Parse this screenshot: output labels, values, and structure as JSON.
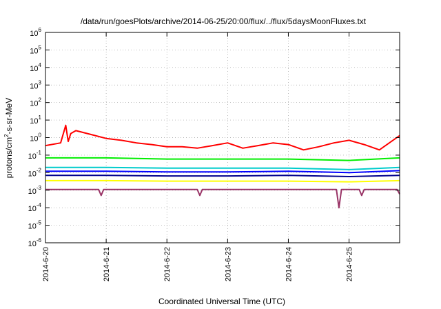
{
  "chart_data": {
    "type": "line",
    "title": "/data/run/goesPlots/archive/2014-06-25/20:00/flux/../flux/5daysMoonFluxes.txt",
    "xlabel": "Coordinated Universal Time (UTC)",
    "ylabel_prefix": "protons/cm",
    "ylabel_sup": "2",
    "ylabel_suffix": "-s-sr-MeV",
    "x_scale": "date",
    "y_scale": "log",
    "grid": true,
    "legend": "none",
    "xlim": [
      "2014-06-20 00:00",
      "2014-06-25 20:00"
    ],
    "ylim": [
      1e-06,
      1000000.0
    ],
    "x_ticks": [
      "2014-6-20",
      "2014-6-21",
      "2014-6-22",
      "2014-6-23",
      "2014-6-24",
      "2014-6-25"
    ],
    "y_ticks": [
      {
        "base": "10",
        "exp": "-6"
      },
      {
        "base": "10",
        "exp": "-5"
      },
      {
        "base": "10",
        "exp": "-4"
      },
      {
        "base": "10",
        "exp": "-3"
      },
      {
        "base": "10",
        "exp": "-2"
      },
      {
        "base": "10",
        "exp": "-1"
      },
      {
        "base": "10",
        "exp": "0"
      },
      {
        "base": "10",
        "exp": "1"
      },
      {
        "base": "10",
        "exp": "2"
      },
      {
        "base": "10",
        "exp": "3"
      },
      {
        "base": "10",
        "exp": "4"
      },
      {
        "base": "10",
        "exp": "5"
      },
      {
        "base": "10",
        "exp": "6"
      }
    ],
    "series": [
      {
        "color": "#ff0000",
        "x": [
          "2014-06-20 00:00",
          "2014-06-20 06:00",
          "2014-06-20 08:00",
          "2014-06-20 09:00",
          "2014-06-20 10:00",
          "2014-06-20 12:00",
          "2014-06-20 18:00",
          "2014-06-21 00:00",
          "2014-06-21 06:00",
          "2014-06-21 12:00",
          "2014-06-21 18:00",
          "2014-06-22 00:00",
          "2014-06-22 06:00",
          "2014-06-22 12:00",
          "2014-06-22 18:00",
          "2014-06-23 00:00",
          "2014-06-23 06:00",
          "2014-06-23 12:00",
          "2014-06-23 18:00",
          "2014-06-24 00:00",
          "2014-06-24 06:00",
          "2014-06-24 12:00",
          "2014-06-24 18:00",
          "2014-06-25 00:00",
          "2014-06-25 06:00",
          "2014-06-25 12:00",
          "2014-06-25 20:00"
        ],
        "y": [
          0.35,
          0.5,
          5,
          0.6,
          1.7,
          2.5,
          1.5,
          0.9,
          0.7,
          0.5,
          0.4,
          0.3,
          0.3,
          0.25,
          0.35,
          0.5,
          0.25,
          0.35,
          0.5,
          0.4,
          0.2,
          0.3,
          0.5,
          0.7,
          0.4,
          0.2,
          1.3
        ]
      },
      {
        "color": "#00ee00",
        "x": [
          "2014-06-20 00:00",
          "2014-06-21 00:00",
          "2014-06-22 00:00",
          "2014-06-23 00:00",
          "2014-06-24 00:00",
          "2014-06-25 00:00",
          "2014-06-25 20:00"
        ],
        "y": [
          0.07,
          0.07,
          0.06,
          0.06,
          0.06,
          0.05,
          0.07
        ]
      },
      {
        "color": "#00cccc",
        "x": [
          "2014-06-20 00:00",
          "2014-06-21 00:00",
          "2014-06-22 00:00",
          "2014-06-23 00:00",
          "2014-06-24 00:00",
          "2014-06-25 00:00",
          "2014-06-25 20:00"
        ],
        "y": [
          0.02,
          0.02,
          0.018,
          0.018,
          0.018,
          0.015,
          0.02
        ]
      },
      {
        "color": "#0000ff",
        "x": [
          "2014-06-20 00:00",
          "2014-06-21 00:00",
          "2014-06-22 00:00",
          "2014-06-23 00:00",
          "2014-06-24 00:00",
          "2014-06-25 00:00",
          "2014-06-25 20:00"
        ],
        "y": [
          0.012,
          0.012,
          0.011,
          0.011,
          0.012,
          0.01,
          0.013
        ]
      },
      {
        "color": "#00008b",
        "x": [
          "2014-06-20 00:00",
          "2014-06-21 00:00",
          "2014-06-22 00:00",
          "2014-06-23 00:00",
          "2014-06-24 00:00",
          "2014-06-25 00:00",
          "2014-06-25 20:00"
        ],
        "y": [
          0.007,
          0.007,
          0.0065,
          0.0065,
          0.007,
          0.006,
          0.007
        ]
      },
      {
        "color": "#ffff00",
        "x": [
          "2014-06-20 00:00",
          "2014-06-21 00:00",
          "2014-06-22 00:00",
          "2014-06-23 00:00",
          "2014-06-24 00:00",
          "2014-06-25 00:00",
          "2014-06-25 20:00"
        ],
        "y": [
          0.0035,
          0.0035,
          0.0033,
          0.0033,
          0.0033,
          0.003,
          0.0035
        ]
      },
      {
        "color": "#993366",
        "x": [
          "2014-06-20 00:00",
          "2014-06-20 21:00",
          "2014-06-20 22:00",
          "2014-06-20 23:00",
          "2014-06-22 12:00",
          "2014-06-22 13:00",
          "2014-06-22 14:00",
          "2014-06-24 19:00",
          "2014-06-24 20:00",
          "2014-06-24 21:00",
          "2014-06-25 04:00",
          "2014-06-25 05:00",
          "2014-06-25 06:00",
          "2014-06-25 19:00",
          "2014-06-25 20:00"
        ],
        "y": [
          0.0011,
          0.0011,
          0.0005,
          0.0011,
          0.0011,
          0.0005,
          0.0011,
          0.0011,
          0.0001,
          0.0011,
          0.0011,
          0.0005,
          0.0011,
          0.0011,
          0.0006
        ]
      }
    ]
  }
}
